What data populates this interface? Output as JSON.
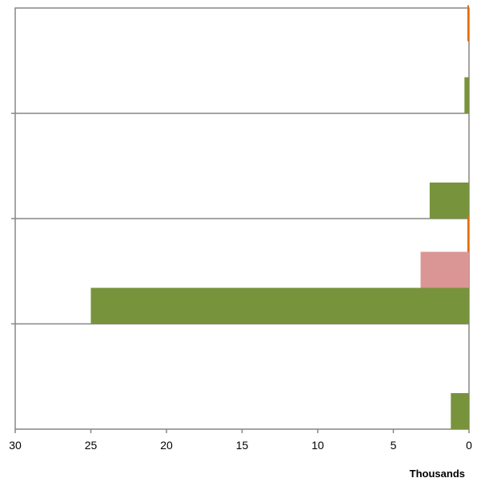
{
  "chart_data": {
    "type": "bar",
    "orientation": "horizontal",
    "x_axis_reversed": true,
    "xlim": [
      0,
      30000
    ],
    "x_ticks": [
      30,
      25,
      20,
      15,
      10,
      5,
      0
    ],
    "x_units_label": "Thousands",
    "categories": [
      "",
      "",
      "",
      ""
    ],
    "series": [
      {
        "color": "#77933c",
        "values": [
          300,
          2600,
          25000,
          1200
        ]
      },
      {
        "color": "#d99694",
        "values": [
          0,
          0,
          3200,
          0
        ]
      },
      {
        "color": "#e46c0a",
        "values": [
          60,
          0,
          60,
          0
        ]
      }
    ],
    "grid": true,
    "legend": "none"
  }
}
